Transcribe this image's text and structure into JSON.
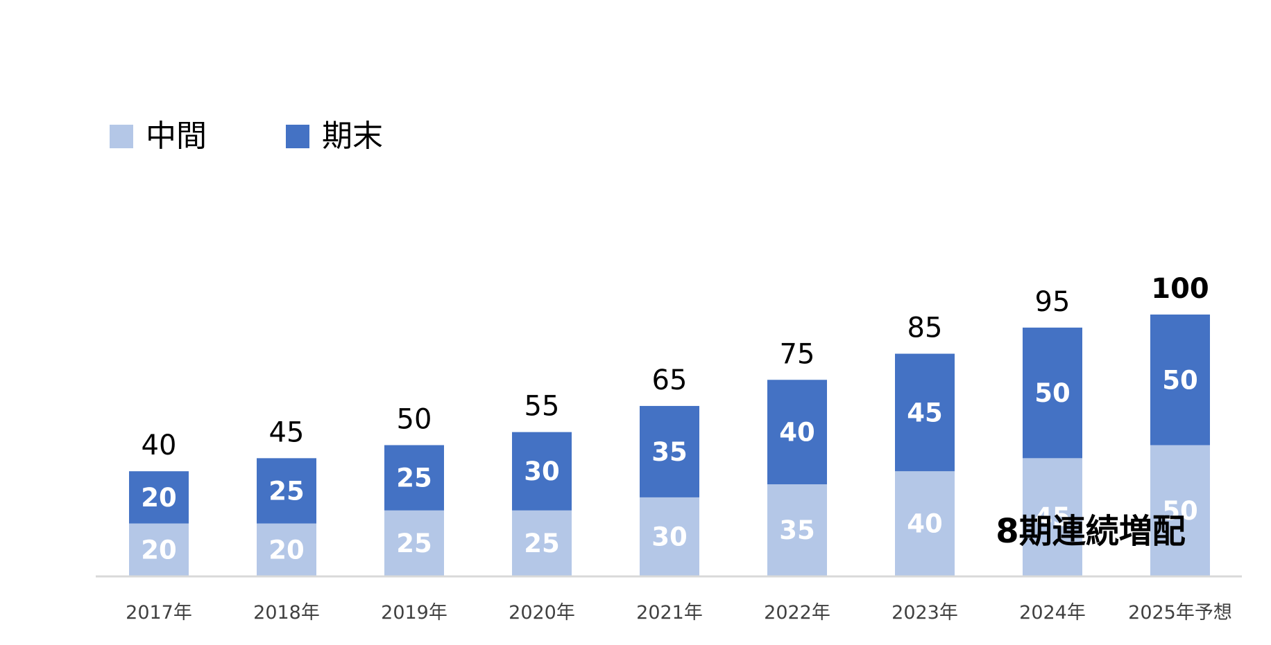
{
  "chart_data": {
    "type": "bar",
    "stacked": true,
    "categories": [
      "2017年",
      "2018年",
      "2019年",
      "2020年",
      "2021年",
      "2022年",
      "2023年",
      "2024年",
      "2025年予想"
    ],
    "series": [
      {
        "name": "中間",
        "color": "#b4c7e7",
        "values": [
          20,
          20,
          25,
          25,
          30,
          35,
          40,
          45,
          50
        ]
      },
      {
        "name": "期末",
        "color": "#4472c4",
        "values": [
          20,
          25,
          25,
          30,
          35,
          40,
          45,
          50,
          50
        ]
      }
    ],
    "totals": [
      40,
      45,
      50,
      55,
      65,
      75,
      85,
      95,
      100
    ],
    "ylim": [
      0,
      100
    ],
    "grid": false,
    "legend_position": "top-left",
    "annotation": "8期連続増配",
    "axis_color": "#d9d9d9",
    "inner_label_color": "#ffffff",
    "total_label_color": "#000000"
  }
}
